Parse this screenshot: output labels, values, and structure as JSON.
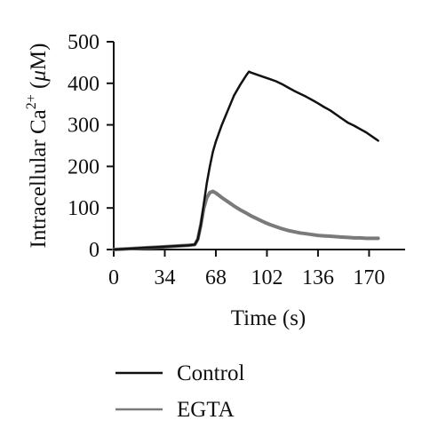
{
  "chart_data": {
    "type": "line",
    "xlabel": "Time (s)",
    "ylabel": "Intracellular Ca",
    "ylabel_sup": "2+",
    "ylabel_unit_open": " (",
    "ylabel_unit_mu": "μ",
    "ylabel_unit_rest": "M)",
    "xlim": [
      0,
      194
    ],
    "ylim": [
      0,
      500
    ],
    "x_ticks": [
      0,
      34,
      68,
      102,
      136,
      170
    ],
    "x_tick_labels": [
      "0",
      "34",
      "68",
      "102",
      "136",
      "170"
    ],
    "y_ticks": [
      0,
      100,
      200,
      300,
      400,
      500
    ],
    "y_tick_labels": [
      "0",
      "100",
      "200",
      "300",
      "400",
      "500"
    ],
    "grid": false,
    "legend_position": "bottom-left",
    "series": [
      {
        "name": "Control",
        "color": "#111111",
        "x": [
          0,
          10,
          20,
          30,
          40,
          50,
          54,
          56,
          58,
          60,
          62,
          64,
          66,
          68,
          72,
          76,
          80,
          84,
          88,
          90,
          92,
          96,
          100,
          104,
          108,
          112,
          116,
          120,
          124,
          128,
          132,
          136,
          140,
          144,
          148,
          152,
          156,
          160,
          164,
          168,
          172,
          176
        ],
        "y": [
          0,
          2,
          4,
          6,
          8,
          10,
          12,
          25,
          60,
          110,
          160,
          200,
          235,
          260,
          300,
          335,
          370,
          395,
          418,
          428,
          425,
          420,
          415,
          410,
          405,
          398,
          390,
          382,
          375,
          368,
          360,
          352,
          343,
          335,
          325,
          315,
          305,
          298,
          290,
          282,
          272,
          262
        ]
      },
      {
        "name": "EGTA",
        "color": "#7a7a7a",
        "x": [
          0,
          10,
          20,
          30,
          40,
          50,
          54,
          56,
          58,
          60,
          62,
          64,
          66,
          68,
          72,
          76,
          80,
          84,
          88,
          92,
          96,
          100,
          104,
          108,
          112,
          116,
          120,
          124,
          128,
          132,
          136,
          140,
          144,
          148,
          152,
          156,
          160,
          164,
          168,
          172,
          176
        ],
        "y": [
          0,
          2,
          4,
          6,
          8,
          10,
          12,
          25,
          60,
          100,
          125,
          137,
          140,
          136,
          125,
          115,
          105,
          96,
          88,
          80,
          73,
          66,
          60,
          55,
          50,
          46,
          43,
          40,
          38,
          36,
          34,
          33,
          32,
          31,
          30,
          29,
          28,
          28,
          27,
          27,
          27
        ]
      }
    ]
  }
}
